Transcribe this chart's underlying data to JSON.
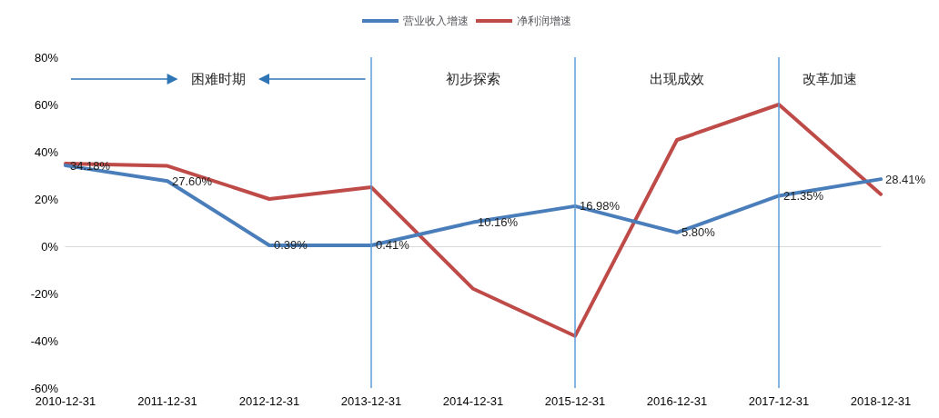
{
  "chart_data": {
    "type": "line",
    "categories": [
      "2010-12-31",
      "2011-12-31",
      "2012-12-31",
      "2013-12-31",
      "2014-12-31",
      "2015-12-31",
      "2016-12-31",
      "2017-12-31",
      "2018-12-31"
    ],
    "series": [
      {
        "name": "营业收入增速",
        "color": "#4a7ebb",
        "values": [
          34.18,
          27.6,
          0.39,
          0.41,
          10.16,
          16.98,
          5.8,
          21.35,
          28.41
        ],
        "value_labels": [
          "34.18%",
          "27.60%",
          "0.39%",
          "0.41%",
          "10.16%",
          "16.98%",
          "5.80%",
          "21.35%",
          "28.41%"
        ]
      },
      {
        "name": "净利润增速",
        "color": "#be4b48",
        "values": [
          35,
          34,
          20,
          25,
          -18,
          -38,
          45,
          60,
          22
        ]
      }
    ],
    "ylim": [
      -60,
      80
    ],
    "yticks": [
      {
        "value": -60,
        "label": "-60%"
      },
      {
        "value": -40,
        "label": "-40%"
      },
      {
        "value": -20,
        "label": "-20%"
      },
      {
        "value": 0,
        "label": "0%"
      },
      {
        "value": 20,
        "label": "20%"
      },
      {
        "value": 40,
        "label": "40%"
      },
      {
        "value": 60,
        "label": "60%"
      },
      {
        "value": 80,
        "label": "80%"
      }
    ],
    "grid": false,
    "legend": "top",
    "marker": "none",
    "line_style": "solid",
    "ref_lines": [
      {
        "axis": "x",
        "value": "2013-12-31",
        "color": "#5b9bd5"
      },
      {
        "axis": "x",
        "value": "2015-12-31",
        "color": "#5b9bd5"
      },
      {
        "axis": "x",
        "value": "2017-12-31",
        "color": "#5b9bd5"
      }
    ],
    "annotations": [
      "困难时期",
      "初步探索",
      "出现成效",
      "改革加速"
    ]
  }
}
